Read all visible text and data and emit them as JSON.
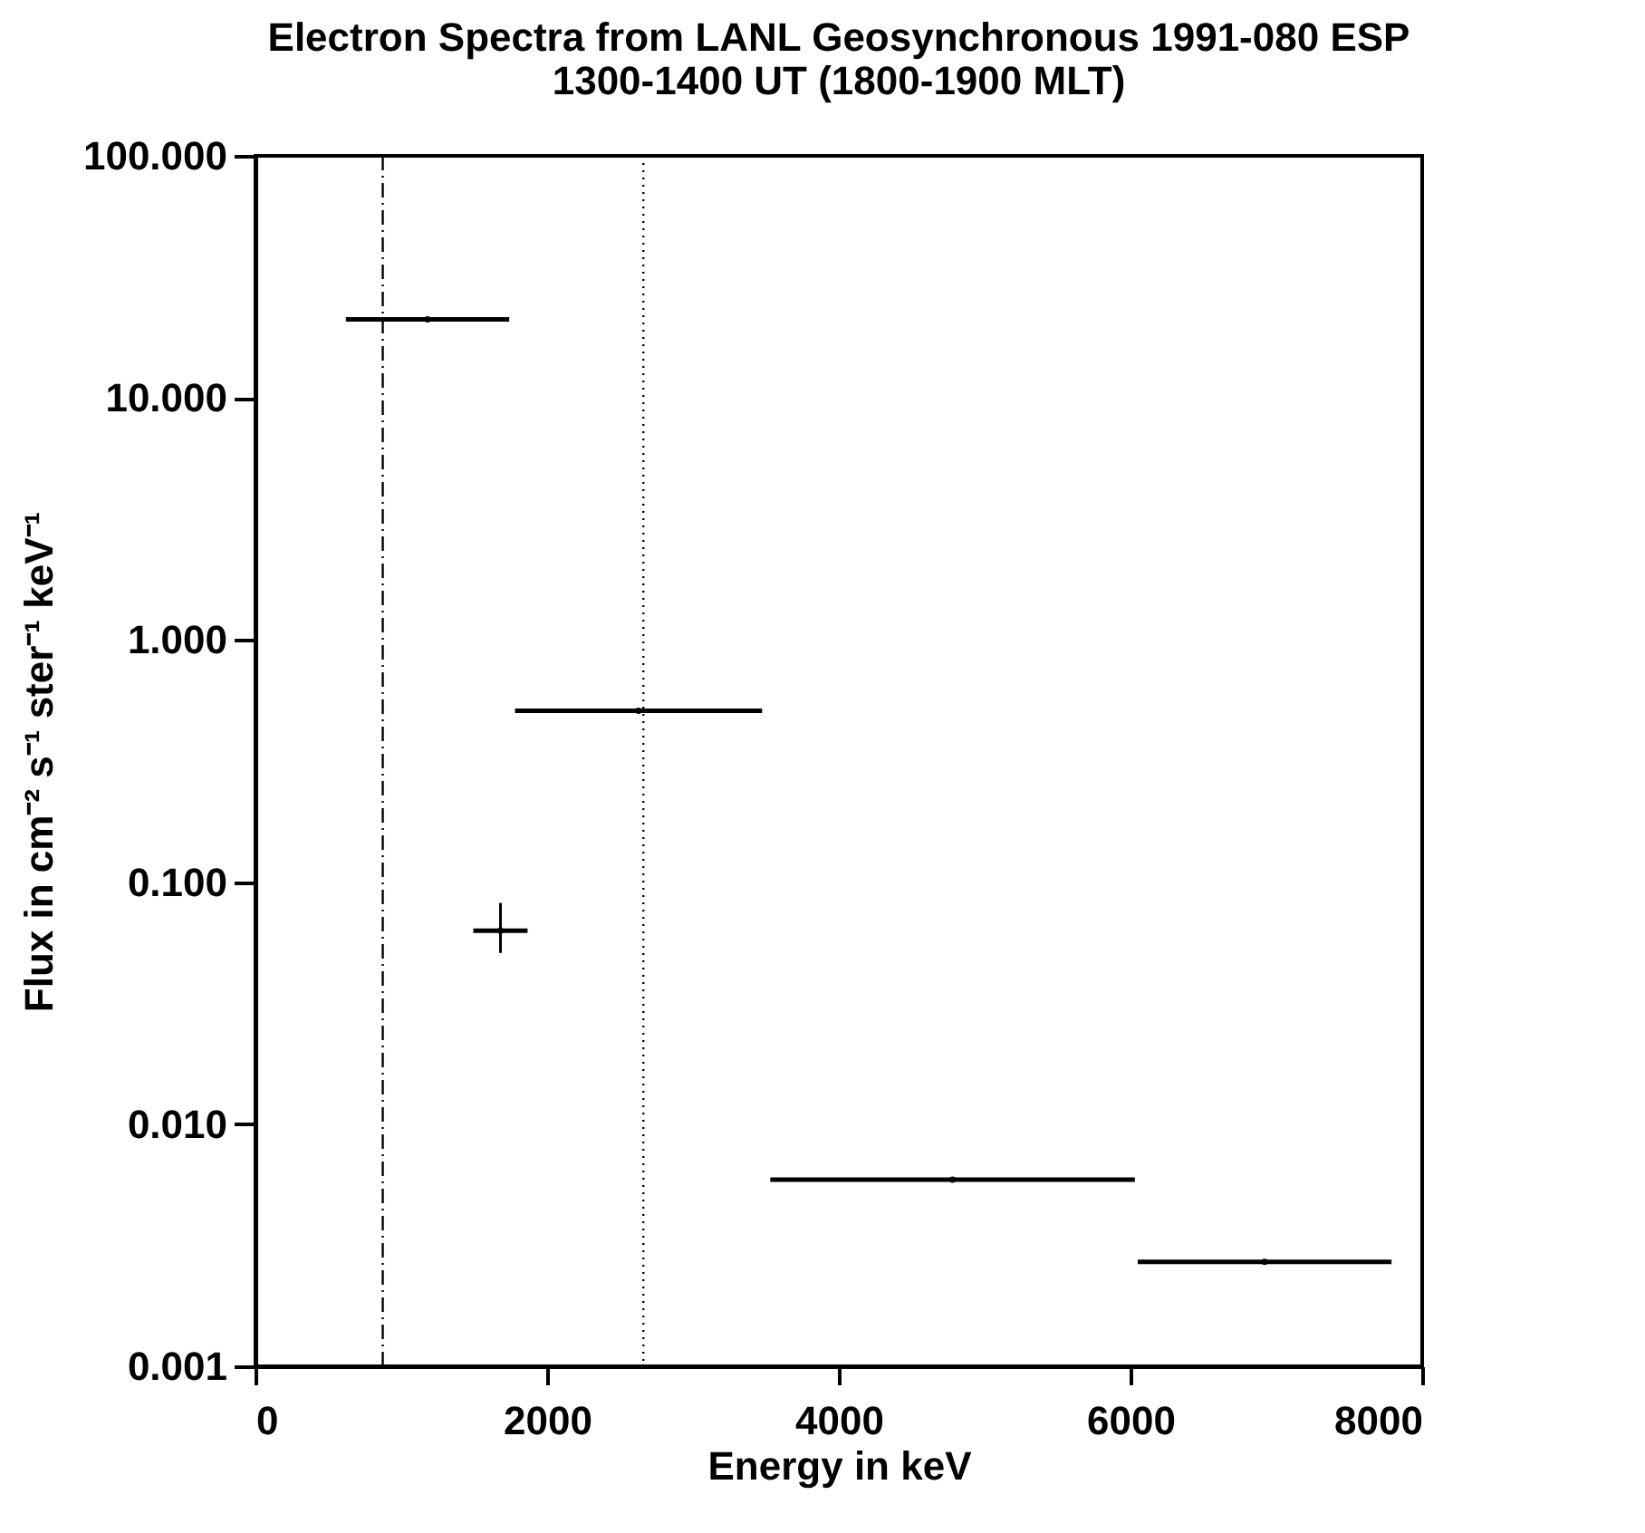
{
  "chart_data": {
    "type": "scatter",
    "title": "Electron Spectra from LANL Geosynchronous 1991-080 ESP",
    "subtitle": "1300-1400 UT (1800-1900 MLT)",
    "xlabel": "Energy in keV",
    "ylabel": "Flux in cm⁻² s⁻¹ ster⁻¹ keV⁻¹",
    "x": [
      1180,
      1680,
      2627,
      4780,
      6920
    ],
    "series": [
      {
        "color": "#000000",
        "values": [
          21.1,
          0.063,
          0.51,
          0.0059,
          0.0027
        ],
        "xerrors": [
          560,
          186,
          847,
          1250,
          870
        ],
        "errors": [
          null,
          [
            0.051,
            0.082
          ],
          null,
          null,
          null
        ]
      }
    ],
    "log": "y",
    "xlim": [
      0,
      8000
    ],
    "xticks": [
      0,
      2000,
      4000,
      6000,
      8000
    ],
    "ylim": [
      0.001,
      100
    ],
    "yticks": [
      {
        "value": 0.001,
        "label": "0.001"
      },
      {
        "value": 0.01,
        "label": "0.010"
      },
      {
        "value": 0.1,
        "label": "0.100"
      },
      {
        "value": 1,
        "label": "1.000"
      },
      {
        "value": 10,
        "label": "10.000"
      },
      {
        "value": 100,
        "label": "100.000"
      }
    ],
    "ref_lines": [
      {
        "axis": "x",
        "value": 873,
        "line_style": "dashed",
        "color": "#000000"
      },
      {
        "axis": "x",
        "value": 2660,
        "line_style": "dotted",
        "color": "#000000"
      }
    ],
    "grid": false,
    "marker": "circle"
  }
}
